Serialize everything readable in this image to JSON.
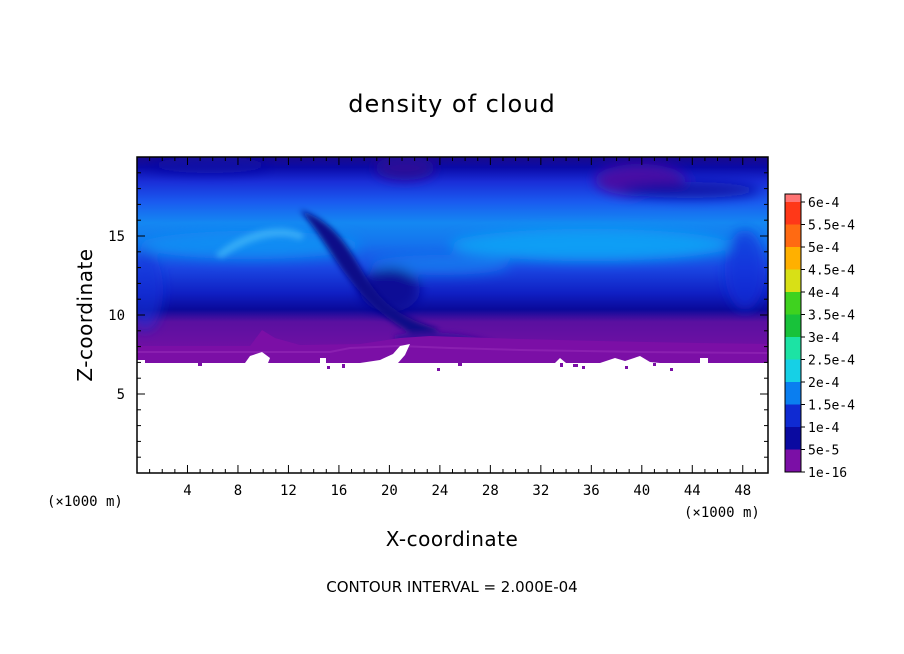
{
  "chart_data": {
    "type": "heatmap",
    "title": "density of cloud",
    "xlabel": "X-coordinate",
    "ylabel": "Z-coordinate",
    "x_unit_label": "(×1000 m)",
    "z_unit_label": "(×1000 m)",
    "xlim": [
      0,
      50
    ],
    "ylim": [
      0,
      20
    ],
    "x_ticks": [
      4,
      8,
      12,
      16,
      20,
      24,
      28,
      32,
      36,
      40,
      44,
      48
    ],
    "y_ticks": [
      5,
      10,
      15
    ],
    "grid": false,
    "colorbar": {
      "position": "right",
      "levels": [
        "1e-16",
        "5e-5",
        "1e-4",
        "1.5e-4",
        "2e-4",
        "2.5e-4",
        "3e-4",
        "3.5e-4",
        "4e-4",
        "4.5e-4",
        "5e-4",
        "5.5e-4",
        "6e-4"
      ],
      "colors": [
        "#7b0fa6",
        "#0a0aa0",
        "#0f2ad2",
        "#0a7ef0",
        "#16d0e6",
        "#1ce3a4",
        "#18c23a",
        "#3fd21f",
        "#d8e016",
        "#ffb000",
        "#ff6a12",
        "#ff3818",
        "#ff7474"
      ]
    },
    "field_value_range": [
      "1e-16",
      "1.5e-4"
    ],
    "cloud_base_z": 7,
    "contour_interval_text": "CONTOUR INTERVAL = 2.000E-04"
  }
}
